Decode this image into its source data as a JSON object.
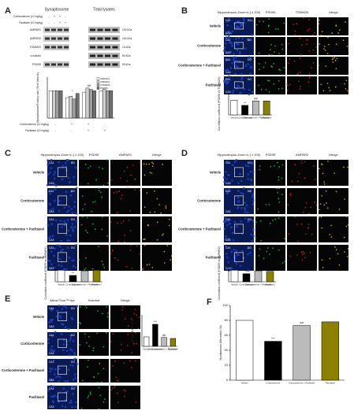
{
  "panels": [
    {
      "letter": "A",
      "headers": [
        "Synaptosome",
        "Total lysates"
      ],
      "sign_rows": [
        {
          "label": "Corticosterone (10 mg/kg)",
          "signs": [
            "-",
            "+",
            "+",
            "-"
          ]
        },
        {
          "label": "Paclitaxel (10 mg/kg)",
          "signs": [
            "-",
            "-",
            "+",
            "+"
          ]
        }
      ],
      "blots": [
        "AMPAR1",
        "AMPAR2",
        "TOMM20",
        "α-tubulin",
        "PSD95"
      ],
      "sizes": [
        "100 kDa",
        "100 kDa",
        "16 kDa",
        "50 kDa",
        "95 kDa"
      ]
    },
    {
      "letter": "B",
      "image_headers": [
        "Hippocampus Zoom in ( x 100)",
        "PSD95",
        "TOMM20",
        "Merge"
      ],
      "rows": [
        "Vehicle",
        "Corticosterone",
        "Corticosterone + Paclitaxel",
        "Paclitaxel"
      ],
      "regions": [
        "CA1",
        "DG",
        "CA3"
      ]
    },
    {
      "letter": "C",
      "image_headers": [
        "Hippocampus Zoom in ( x 100)",
        "PSD95",
        "AMPAR1",
        "Merge"
      ],
      "rows": [
        "Vehicle",
        "Corticosterone",
        "Corticosterone + Paclitaxel",
        "Paclitaxel"
      ],
      "regions": [
        "CA1",
        "DG",
        "CA3"
      ]
    },
    {
      "letter": "D",
      "image_headers": [
        "Hippocampus Zoom in ( x 100)",
        "PSD95",
        "AMPAR2",
        "Merge"
      ],
      "rows": [
        "Vehicle",
        "Corticosterone",
        "Corticosterone + Paclitaxel",
        "Paclitaxel"
      ],
      "regions": [
        "CA1",
        "DG",
        "CA3"
      ]
    },
    {
      "letter": "E",
      "image_headers": [
        "Alexa Fluor™ dye",
        "Hoechst",
        "Merge"
      ],
      "rows": [
        "Vehicle",
        "Corticosterone",
        "Corticosterone + Paclitaxel",
        "Paclitaxel"
      ],
      "regions": [
        "CA1",
        "DG",
        "CA3"
      ]
    },
    {
      "letter": "F"
    }
  ],
  "chart_data": [
    {
      "type": "grouped-bar",
      "ylabel": "Synaptosome/Protein ratio (% of Vehicle)",
      "categories": [
        null,
        null,
        null,
        null
      ],
      "series": [
        {
          "name": "AMPAR1",
          "color": "#ffffff",
          "values": [
            100,
            75,
            95,
            100
          ]
        },
        {
          "name": "AMPAR2",
          "color": "#d0d0d0",
          "values": [
            100,
            80,
            110,
            105
          ]
        },
        {
          "name": "TOMM20",
          "color": "#a0a0a0",
          "values": [
            100,
            70,
            105,
            100
          ]
        },
        {
          "name": "PSD95",
          "color": "#707070",
          "values": [
            100,
            90,
            100,
            100
          ]
        }
      ],
      "annotations": [
        null,
        "*",
        "##",
        null
      ],
      "ylim": [
        0,
        150
      ]
    },
    {
      "type": "bar",
      "ylabel": "Correlation coefficient (PSD95 vs TOMM20)",
      "categories": [
        "Vehicle",
        "Corticosterone",
        "Corticosterone + Paclitaxel",
        "Paclitaxel"
      ],
      "values": [
        100,
        65,
        95,
        95
      ],
      "colors": [
        "#ffffff",
        "#000000",
        "#bbbbbb",
        "#8b8000"
      ],
      "annotations": [
        null,
        "**",
        "##",
        null
      ],
      "ylim": [
        0,
        150
      ]
    },
    {
      "type": "bar",
      "ylabel": "Correlation coefficient (PSD95 vs AMPAR1)",
      "categories": [
        "Vehicle",
        "Corticosterone",
        "Corticosterone + Paclitaxel",
        "Paclitaxel"
      ],
      "values": [
        100,
        55,
        95,
        100
      ],
      "colors": [
        "#ffffff",
        "#000000",
        "#bbbbbb",
        "#8b8000"
      ],
      "annotations": [
        null,
        "**",
        "##",
        null
      ],
      "ylim": [
        0,
        150
      ]
    },
    {
      "type": "bar",
      "ylabel": "Correlation coefficient (PSD95 vs AMPAR2)",
      "categories": [
        "Vehicle",
        "Corticosterone",
        "Corticosterone + Paclitaxel",
        "Paclitaxel"
      ],
      "values": [
        100,
        70,
        95,
        90
      ],
      "colors": [
        "#ffffff",
        "#000000",
        "#bbbbbb",
        "#8b8000"
      ],
      "annotations": [
        null,
        "**",
        "#",
        null
      ],
      "ylim": [
        0,
        150
      ]
    },
    {
      "type": "bar",
      "ylabel": "Intensity of Cell death",
      "categories": [
        "Vehicle",
        "Corticosterone",
        "Corticosterone + Paclitaxel",
        "Paclitaxel"
      ],
      "values": [
        30,
        70,
        28,
        25
      ],
      "colors": [
        "#ffffff",
        "#000000",
        "#bbbbbb",
        "#8b8000"
      ],
      "annotations": [
        null,
        "***",
        "##",
        null
      ],
      "ylim": [
        0,
        100
      ]
    },
    {
      "type": "bar",
      "ylabel": "Spontaneous Alternation (%)",
      "categories": [
        "Vehicle",
        "Corticosterone",
        "Corticosterone + Paclitaxel",
        "Paclitaxel"
      ],
      "values": [
        80,
        52,
        73,
        78
      ],
      "colors": [
        "#ffffff",
        "#000000",
        "#bbbbbb",
        "#8b8000"
      ],
      "annotations": [
        null,
        "***",
        "##",
        null
      ],
      "ylim": [
        0,
        100
      ],
      "yticks": [
        0,
        20,
        40,
        60,
        80,
        100
      ]
    }
  ]
}
